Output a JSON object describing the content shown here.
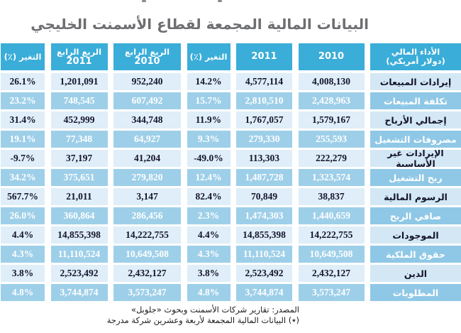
{
  "title": "البيانات المالية المجمعة لقطاع الأسمنت الخليجي",
  "chart_data": {
    "type": "table",
    "direction": "rtl",
    "columns": [
      {
        "id": "financial-performance-label",
        "line1": "الأداء المالي",
        "line2": "(دولار أمريكي)"
      },
      {
        "id": "year-2010",
        "line1": "2010",
        "line2": ""
      },
      {
        "id": "year-2011",
        "line1": "2011",
        "line2": ""
      },
      {
        "id": "change-annual",
        "line1": "التغير (٪)",
        "line2": ""
      },
      {
        "id": "q4-2010",
        "line1": "الربع الرابع",
        "line2": "2010"
      },
      {
        "id": "q4-2011",
        "line1": "الربع الرابع",
        "line2": "2011"
      },
      {
        "id": "change-quarter",
        "line1": "التغير (٪)",
        "line2": ""
      }
    ],
    "rows": [
      {
        "label": "إيرادات المبيعات",
        "y2010": "4,008,130",
        "y2011": "4,577,114",
        "change_y": "14.2%",
        "q2010": "952,240",
        "q2011": "1,201,091",
        "change_q": "26.1%"
      },
      {
        "label": "تكلفة المبيعات",
        "y2010": "2,428,963",
        "y2011": "2,810,510",
        "change_y": "15.7%",
        "q2010": "607,492",
        "q2011": "748,545",
        "change_q": "23.2%"
      },
      {
        "label": "إجمالي الأرباح",
        "y2010": "1,579,167",
        "y2011": "1,767,057",
        "change_y": "11.9%",
        "q2010": "344,748",
        "q2011": "452,999",
        "change_q": "31.4%"
      },
      {
        "label": "مصروفات التشغيل",
        "y2010": "255,593",
        "y2011": "279,330",
        "change_y": "9.3%",
        "q2010": "64,927",
        "q2011": "77,348",
        "change_q": "19.1%"
      },
      {
        "label": "الإيرادات غير الأساسية",
        "y2010": "222,279",
        "y2011": "113,303",
        "change_y": "-49.0%",
        "q2010": "41,204",
        "q2011": "37,197",
        "change_q": "-9.7%"
      },
      {
        "label": "ربح التشغيل",
        "y2010": "1,323,574",
        "y2011": "1,487,728",
        "change_y": "12.4%",
        "q2010": "279,820",
        "q2011": "375,651",
        "change_q": "34.2%"
      },
      {
        "label": "الرسوم المالية",
        "y2010": "38,837",
        "y2011": "70,849",
        "change_y": "82.4%",
        "q2010": "3,147",
        "q2011": "21,011",
        "change_q": "567.7%"
      },
      {
        "label": "صافي الربح",
        "y2010": "1,440,659",
        "y2011": "1,474,303",
        "change_y": "2.3%",
        "q2010": "286,456",
        "q2011": "360,864",
        "change_q": "26.0%"
      },
      {
        "label": "الموجودات",
        "y2010": "14,222,755",
        "y2011": "14,855,398",
        "change_y": "4.4%",
        "q2010": "14,222,755",
        "q2011": "14,855,398",
        "change_q": "4.4%"
      },
      {
        "label": "حقوق الملكية",
        "y2010": "10,649,508",
        "y2011": "11,110,524",
        "change_y": "4.3%",
        "q2010": "10,649,508",
        "q2011": "11,110,524",
        "change_q": "4.3%"
      },
      {
        "label": "الدين",
        "y2010": "2,432,127",
        "y2011": "2,523,492",
        "change_y": "3.8%",
        "q2010": "2,432,127",
        "q2011": "2,523,492",
        "change_q": "3.8%"
      },
      {
        "label": "المطلوبات",
        "y2010": "3,573,247",
        "y2011": "3,744,874",
        "change_y": "4.8%",
        "q2010": "3,573,247",
        "q2011": "3,744,874",
        "change_q": "4.8%"
      }
    ]
  },
  "footer": {
    "source": "المصدر: تقارير شركات الأسمنت وبحوث «جلوبل»",
    "note": "(٭) البيانات المالية المجمعة لأربعة وعشرين شركة مدرجة"
  },
  "colors": {
    "header_blue": "#3aadd8",
    "row_dark": "#9ecfe9",
    "row_dark_label": "#8fc8e6",
    "row_light": "#dfeef8",
    "row_light_label": "#d3e8f4",
    "title_gray": "#6d6e71",
    "text_dark": "#14142c",
    "text_white": "#ffffff"
  }
}
